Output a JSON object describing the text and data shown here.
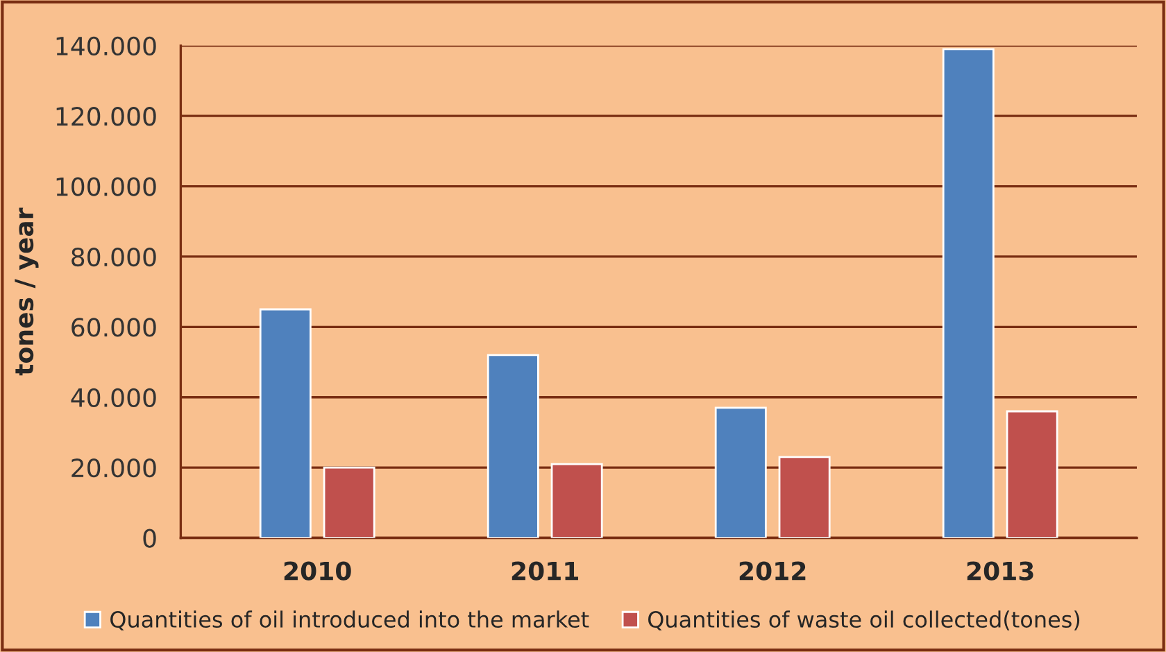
{
  "chart_data": {
    "type": "bar",
    "ylabel": "tones / year",
    "categories": [
      "2010",
      "2011",
      "2012",
      "2013"
    ],
    "series": [
      {
        "name": "Quantities of oil introduced into the market",
        "color": "#4f81bd",
        "values": [
          65000,
          52000,
          37000,
          139000
        ]
      },
      {
        "name": "Quantities of waste oil collected(tones)",
        "color": "#c0504d",
        "values": [
          20000,
          21000,
          23000,
          36000
        ]
      }
    ],
    "ylim": [
      0,
      140000
    ],
    "yticks": [
      {
        "value": 0,
        "label": "0"
      },
      {
        "value": 20000,
        "label": "20.000"
      },
      {
        "value": 40000,
        "label": "40.000"
      },
      {
        "value": 60000,
        "label": "60.000"
      },
      {
        "value": 80000,
        "label": "80.000"
      },
      {
        "value": 100000,
        "label": "100.000"
      },
      {
        "value": 120000,
        "label": "120.000"
      },
      {
        "value": 140000,
        "label": "140.000"
      }
    ],
    "grid": "y",
    "legend": "bottom"
  }
}
